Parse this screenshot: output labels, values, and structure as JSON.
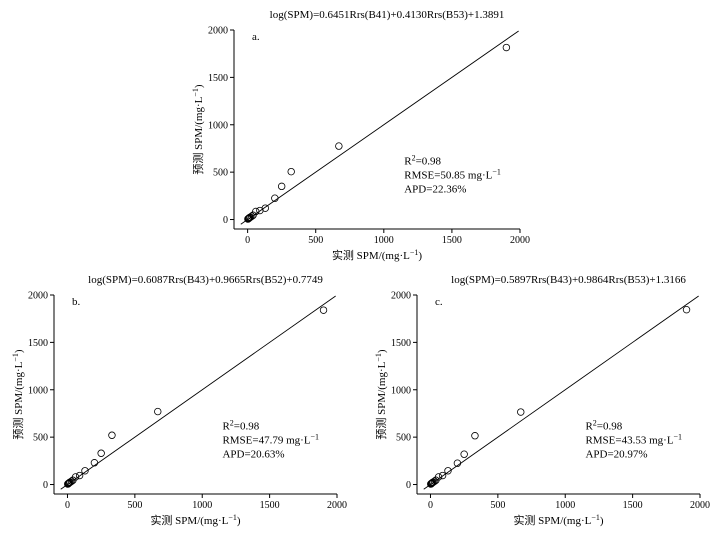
{
  "chart_data": [
    {
      "type": "scatter",
      "panel": "a.",
      "title": "log(SPM)=0.6451Rrs(B41)+0.4130Rrs(B53)+1.3891",
      "xlabel": "实测 SPM/(mg·L⁻¹)",
      "ylabel": "预测 SPM/(mg·L⁻¹)",
      "xlim": [
        -100,
        2000
      ],
      "ylim": [
        -100,
        2000
      ],
      "xticks": [
        "0",
        "500",
        "1000",
        "1500",
        "2000"
      ],
      "yticks": [
        "0",
        "500",
        "1000",
        "1500",
        "2000"
      ],
      "stats": {
        "r2": "R²=0.98",
        "rmse": "RMSE=50.85 mg·L⁻¹",
        "apd": "APD=22.36%"
      },
      "points": [
        [
          2,
          5
        ],
        [
          5,
          8
        ],
        [
          8,
          12
        ],
        [
          10,
          15
        ],
        [
          15,
          20
        ],
        [
          20,
          25
        ],
        [
          30,
          35
        ],
        [
          40,
          45
        ],
        [
          60,
          85
        ],
        [
          90,
          95
        ],
        [
          130,
          120
        ],
        [
          200,
          225
        ],
        [
          250,
          350
        ],
        [
          320,
          505
        ],
        [
          670,
          775
        ],
        [
          1900,
          1815
        ]
      ],
      "line": [
        [
          -50,
          -50
        ],
        [
          1990,
          1990
        ]
      ]
    },
    {
      "type": "scatter",
      "panel": "b.",
      "title": "log(SPM)=0.6087Rrs(B43)+0.9665Rrs(B52)+0.7749",
      "xlabel": "实测 SPM/(mg·L⁻¹)",
      "ylabel": "预测 SPM/(mg·L⁻¹)",
      "xlim": [
        -100,
        2000
      ],
      "ylim": [
        -100,
        2000
      ],
      "xticks": [
        "0",
        "500",
        "1000",
        "1500",
        "2000"
      ],
      "yticks": [
        "0",
        "500",
        "1000",
        "1500",
        "2000"
      ],
      "stats": {
        "r2": "R²=0.98",
        "rmse": "RMSE=47.79 mg·L⁻¹",
        "apd": "APD=20.63%"
      },
      "points": [
        [
          2,
          5
        ],
        [
          5,
          8
        ],
        [
          8,
          12
        ],
        [
          10,
          15
        ],
        [
          15,
          20
        ],
        [
          20,
          25
        ],
        [
          30,
          35
        ],
        [
          40,
          45
        ],
        [
          60,
          80
        ],
        [
          90,
          95
        ],
        [
          130,
          145
        ],
        [
          200,
          230
        ],
        [
          250,
          330
        ],
        [
          330,
          520
        ],
        [
          670,
          770
        ],
        [
          1900,
          1840
        ]
      ],
      "line": [
        [
          -50,
          -50
        ],
        [
          1990,
          1990
        ]
      ]
    },
    {
      "type": "scatter",
      "panel": "c.",
      "title": "log(SPM)=0.5897Rrs(B43)+0.9864Rrs(B53)+1.3166",
      "xlabel": "实测 SPM/(mg·L⁻¹)",
      "ylabel": "预测 SPM/(mg·L⁻¹)",
      "xlim": [
        -100,
        2000
      ],
      "ylim": [
        -100,
        2000
      ],
      "xticks": [
        "0",
        "500",
        "1000",
        "1500",
        "2000"
      ],
      "yticks": [
        "0",
        "500",
        "1000",
        "1500",
        "2000"
      ],
      "stats": {
        "r2": "R²=0.98",
        "rmse": "RMSE=43.53 mg·L⁻¹",
        "apd": "APD=20.97%"
      },
      "points": [
        [
          2,
          5
        ],
        [
          5,
          8
        ],
        [
          8,
          12
        ],
        [
          10,
          15
        ],
        [
          15,
          20
        ],
        [
          20,
          25
        ],
        [
          30,
          35
        ],
        [
          40,
          45
        ],
        [
          60,
          80
        ],
        [
          90,
          95
        ],
        [
          130,
          145
        ],
        [
          200,
          225
        ],
        [
          250,
          320
        ],
        [
          330,
          515
        ],
        [
          670,
          765
        ],
        [
          1900,
          1845
        ]
      ],
      "line": [
        [
          -50,
          -50
        ],
        [
          1990,
          1990
        ]
      ]
    }
  ]
}
